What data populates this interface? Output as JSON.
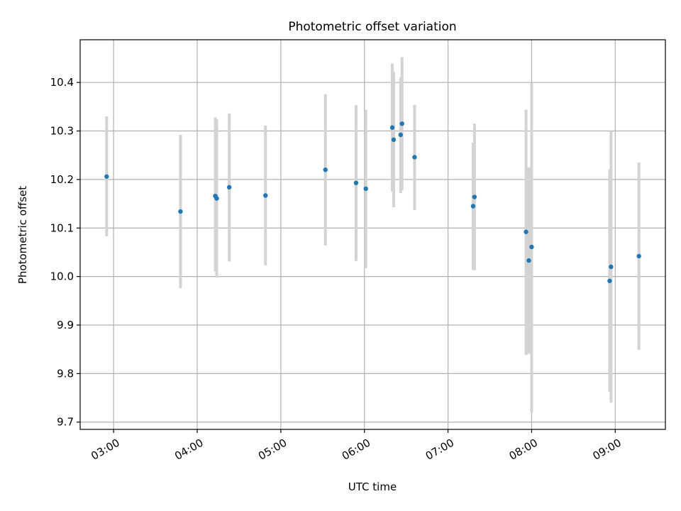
{
  "chart_data": {
    "type": "scatter",
    "title": "Photometric offset variation",
    "xlabel": "UTC time",
    "ylabel": "Photometric offset",
    "xlim": [
      "02:36",
      "09:36"
    ],
    "ylim": [
      9.685,
      10.488
    ],
    "x_ticks": [
      "03:00",
      "04:00",
      "05:00",
      "06:00",
      "07:00",
      "08:00",
      "09:00"
    ],
    "y_ticks": [
      "9.7",
      "9.8",
      "9.9",
      "10.0",
      "10.1",
      "10.2",
      "10.3",
      "10.4"
    ],
    "grid": true,
    "error_bar_color": "#d3d3d3",
    "point_color": "#1f77b4",
    "points": [
      {
        "x": "02:55",
        "y": 10.206,
        "ylo": 10.083,
        "yhi": 10.33
      },
      {
        "x": "03:48",
        "y": 10.134,
        "ylo": 9.976,
        "yhi": 10.292
      },
      {
        "x": "04:13",
        "y": 10.166,
        "ylo": 10.01,
        "yhi": 10.328
      },
      {
        "x": "04:14",
        "y": 10.161,
        "ylo": 9.998,
        "yhi": 10.324
      },
      {
        "x": "04:23",
        "y": 10.184,
        "ylo": 10.031,
        "yhi": 10.336
      },
      {
        "x": "04:49",
        "y": 10.167,
        "ylo": 10.023,
        "yhi": 10.311
      },
      {
        "x": "05:32",
        "y": 10.22,
        "ylo": 10.064,
        "yhi": 10.376
      },
      {
        "x": "05:54",
        "y": 10.193,
        "ylo": 10.032,
        "yhi": 10.353
      },
      {
        "x": "06:01",
        "y": 10.181,
        "ylo": 10.017,
        "yhi": 10.344
      },
      {
        "x": "06:20",
        "y": 10.307,
        "ylo": 10.175,
        "yhi": 10.439
      },
      {
        "x": "06:21",
        "y": 10.282,
        "ylo": 10.143,
        "yhi": 10.422
      },
      {
        "x": "06:26",
        "y": 10.292,
        "ylo": 10.172,
        "yhi": 10.411
      },
      {
        "x": "06:27",
        "y": 10.315,
        "ylo": 10.178,
        "yhi": 10.452
      },
      {
        "x": "06:36",
        "y": 10.246,
        "ylo": 10.137,
        "yhi": 10.354
      },
      {
        "x": "07:18",
        "y": 10.145,
        "ylo": 10.014,
        "yhi": 10.276
      },
      {
        "x": "07:19",
        "y": 10.164,
        "ylo": 10.013,
        "yhi": 10.315
      },
      {
        "x": "07:56",
        "y": 10.092,
        "ylo": 9.838,
        "yhi": 10.344
      },
      {
        "x": "07:58",
        "y": 10.033,
        "ylo": 9.841,
        "yhi": 10.225
      },
      {
        "x": "08:00",
        "y": 10.061,
        "ylo": 9.72,
        "yhi": 10.398
      },
      {
        "x": "08:56",
        "y": 9.991,
        "ylo": 9.762,
        "yhi": 10.221
      },
      {
        "x": "08:57",
        "y": 10.02,
        "ylo": 9.74,
        "yhi": 10.3
      },
      {
        "x": "09:17",
        "y": 10.042,
        "ylo": 9.849,
        "yhi": 10.235
      }
    ]
  }
}
